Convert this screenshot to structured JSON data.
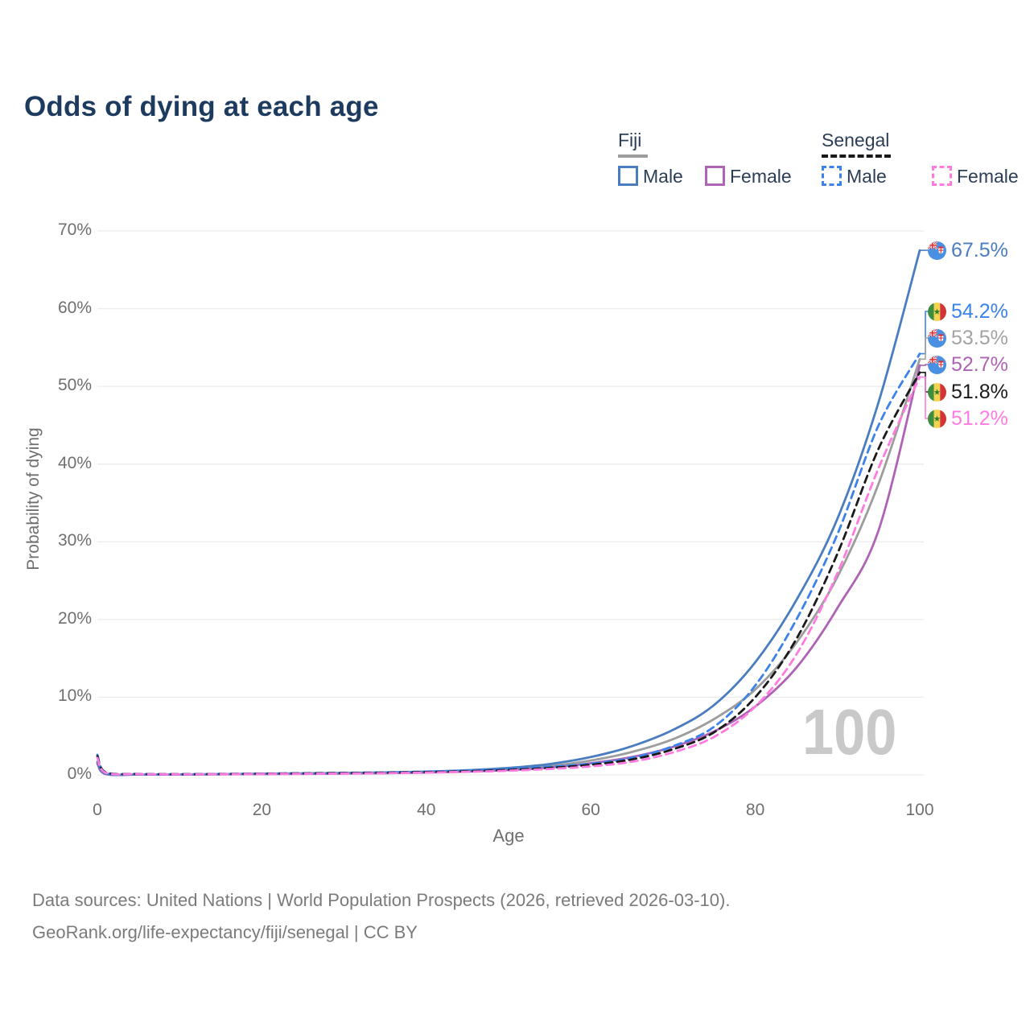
{
  "title": "Odds of dying at each age",
  "legend": {
    "groups": [
      {
        "country": "Fiji",
        "style": "solid",
        "underline_color": "#9d9d9d",
        "items": [
          {
            "label": "Male",
            "color": "#4a7dc0",
            "dashed": false
          },
          {
            "label": "Female",
            "color": "#ae63b5",
            "dashed": false
          }
        ]
      },
      {
        "country": "Senegal",
        "style": "dashed",
        "underline_color": "#1a1a1a",
        "items": [
          {
            "label": "Male",
            "color": "#3b82ea",
            "dashed": true
          },
          {
            "label": "Female",
            "color": "#ff7be0",
            "dashed": true
          }
        ]
      }
    ]
  },
  "chart_data": {
    "type": "line",
    "title": "Odds of dying at each age",
    "xlabel": "Age",
    "ylabel": "Probability of dying",
    "xlim": [
      0,
      100
    ],
    "ylim": [
      0,
      70
    ],
    "x_ticks": [
      "0",
      "20",
      "40",
      "60",
      "80",
      "100"
    ],
    "x_tick_values": [
      0,
      20,
      40,
      60,
      80,
      100
    ],
    "y_ticks": [
      "0%",
      "10%",
      "20%",
      "30%",
      "40%",
      "50%",
      "60%",
      "70%"
    ],
    "y_tick_values": [
      0,
      10,
      20,
      30,
      40,
      50,
      60,
      70
    ],
    "grid": "horizontal",
    "legend_position": "top-right",
    "watermark": "100",
    "x": [
      0,
      1,
      5,
      10,
      15,
      20,
      25,
      30,
      35,
      40,
      45,
      50,
      55,
      60,
      65,
      70,
      75,
      80,
      85,
      90,
      95,
      100
    ],
    "series": [
      {
        "id": "fiji-both",
        "name": "Fiji · Both sexes",
        "color": "#9d9d9d",
        "dash": false,
        "values": [
          1.6,
          0.13,
          0.055,
          0.055,
          0.09,
          0.13,
          0.17,
          0.21,
          0.27,
          0.36,
          0.5,
          0.75,
          1.15,
          1.85,
          2.95,
          4.6,
          7.2,
          11.0,
          17.0,
          25.5,
          37.5,
          53.5
        ]
      },
      {
        "id": "fiji-female",
        "name": "Fiji · Female",
        "color": "#ae63b5",
        "dash": false,
        "values": [
          1.45,
          0.11,
          0.05,
          0.05,
          0.07,
          0.1,
          0.13,
          0.17,
          0.22,
          0.3,
          0.42,
          0.62,
          0.95,
          1.5,
          2.3,
          3.6,
          5.6,
          8.8,
          13.8,
          21.5,
          31.5,
          52.7
        ]
      },
      {
        "id": "fiji-male",
        "name": "Fiji · Male",
        "color": "#4a7dc0",
        "dash": false,
        "values": [
          1.7,
          0.15,
          0.06,
          0.06,
          0.1,
          0.16,
          0.2,
          0.25,
          0.32,
          0.42,
          0.6,
          0.9,
          1.4,
          2.3,
          3.7,
          5.8,
          9.0,
          14.5,
          22.5,
          33.0,
          48.0,
          67.5
        ]
      },
      {
        "id": "senegal-male",
        "name": "Senegal · Male",
        "color": "#3b82ea",
        "dash": true,
        "values": [
          2.6,
          0.35,
          0.12,
          0.09,
          0.12,
          0.17,
          0.22,
          0.27,
          0.33,
          0.42,
          0.55,
          0.75,
          1.05,
          1.45,
          2.2,
          3.7,
          6.2,
          11.5,
          20.0,
          31.0,
          45.0,
          54.2
        ]
      },
      {
        "id": "senegal-both",
        "name": "Senegal · Both sexes",
        "color": "#1a1a1a",
        "dash": true,
        "values": [
          2.4,
          0.32,
          0.11,
          0.08,
          0.11,
          0.15,
          0.19,
          0.23,
          0.28,
          0.36,
          0.47,
          0.64,
          0.9,
          1.3,
          2.0,
          3.3,
          5.5,
          10.0,
          17.5,
          28.5,
          42.0,
          51.8
        ]
      },
      {
        "id": "senegal-female",
        "name": "Senegal · Female",
        "color": "#ff7be0",
        "dash": true,
        "values": [
          2.2,
          0.28,
          0.1,
          0.07,
          0.09,
          0.12,
          0.15,
          0.18,
          0.23,
          0.3,
          0.4,
          0.54,
          0.77,
          1.1,
          1.7,
          2.9,
          4.9,
          8.8,
          15.5,
          26.0,
          39.5,
          51.2
        ]
      }
    ],
    "end_labels": [
      {
        "text": "67.5%",
        "value": 67.5,
        "flag": "fiji",
        "color": "#4a7dc0",
        "series": "Fiji · Male"
      },
      {
        "text": "54.2%",
        "value": 54.2,
        "flag": "senegal",
        "color": "#3b82ea",
        "series": "Senegal · Male"
      },
      {
        "text": "53.5%",
        "value": 53.5,
        "flag": "fiji",
        "color": "#a3a3a3",
        "series": "Fiji · Both sexes"
      },
      {
        "text": "52.7%",
        "value": 52.7,
        "flag": "fiji",
        "color": "#ae63b5",
        "series": "Fiji · Female"
      },
      {
        "text": "51.8%",
        "value": 51.8,
        "flag": "senegal",
        "color": "#1a1a1a",
        "series": "Senegal · Both sexes"
      },
      {
        "text": "51.2%",
        "value": 51.2,
        "flag": "senegal",
        "color": "#ff7be0",
        "series": "Senegal · Female"
      }
    ]
  },
  "footer": {
    "line1": "Data sources: United Nations | World Population Prospects (2026, retrieved 2026-03-10).",
    "line2": "GeoRank.org/life-expectancy/fiji/senegal | CC BY"
  }
}
